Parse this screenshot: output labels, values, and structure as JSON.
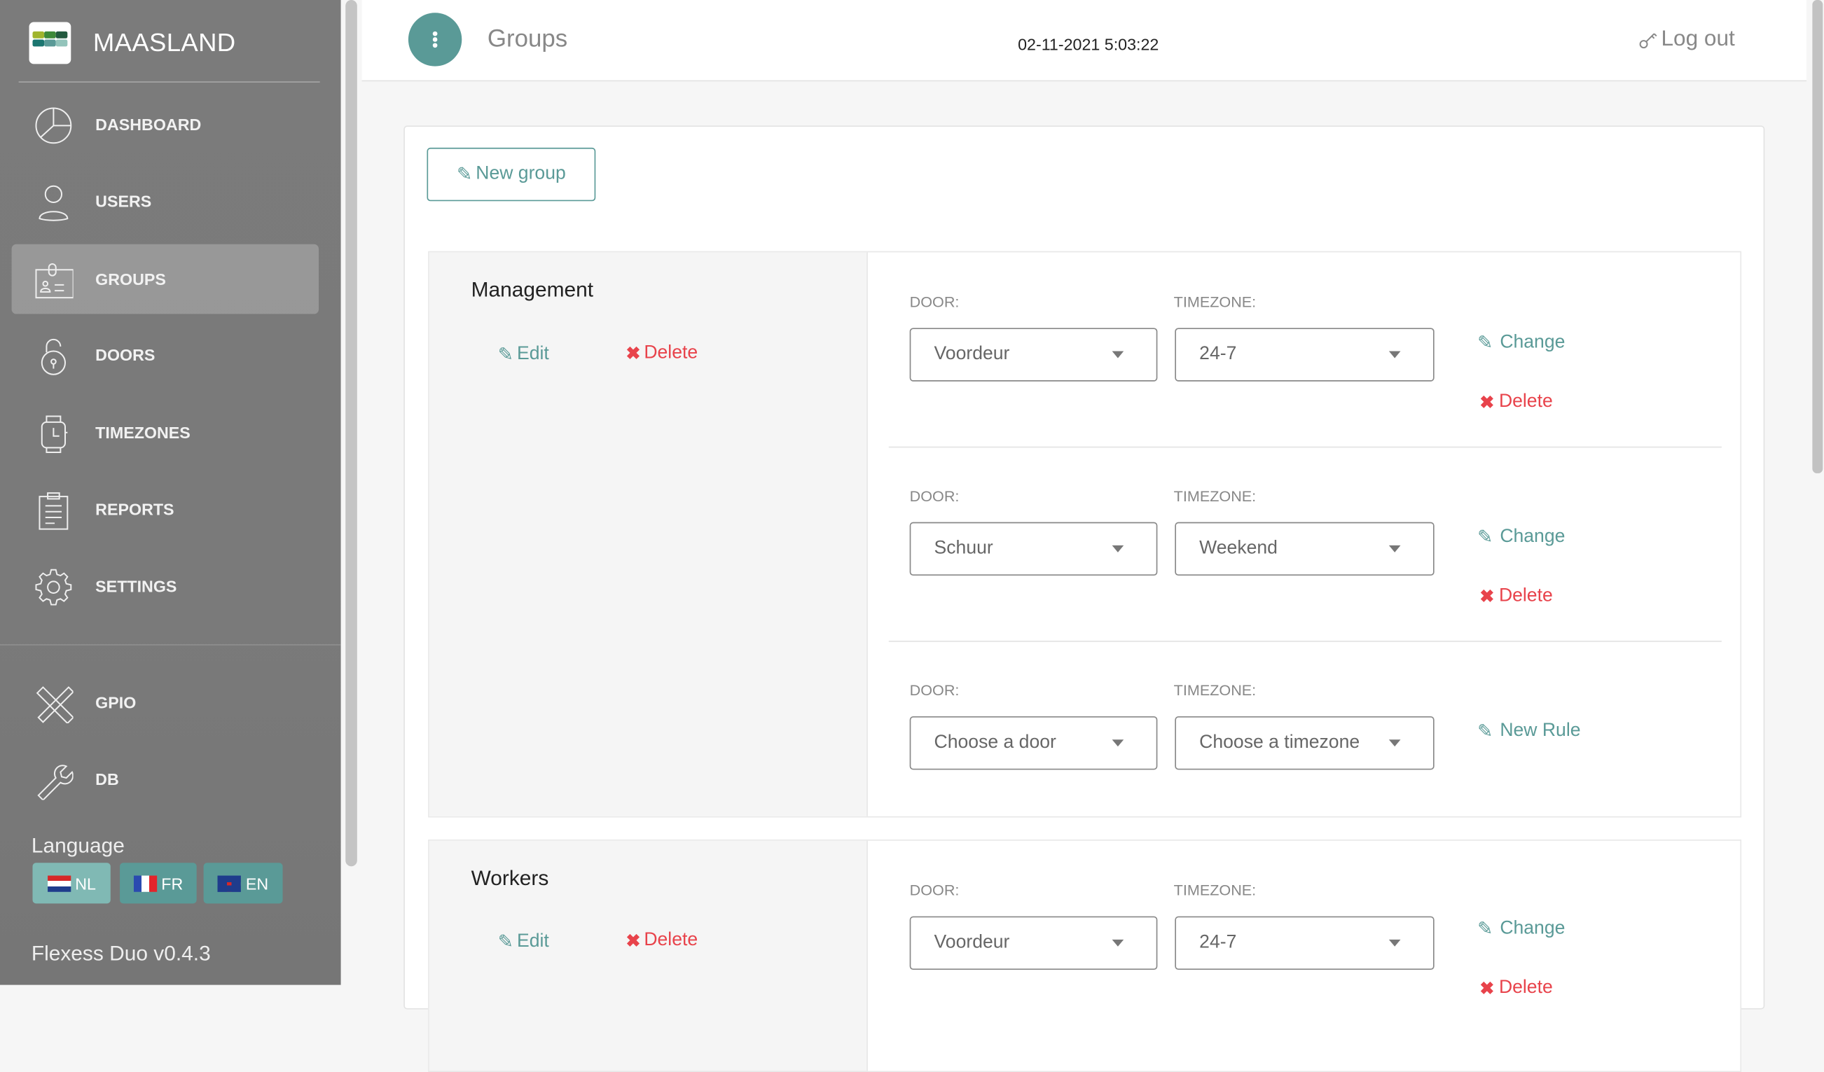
{
  "sidebar": {
    "brand": "MAASLAND",
    "items": [
      {
        "label": "DASHBOARD",
        "icon": "pie-chart-icon"
      },
      {
        "label": "USERS",
        "icon": "user-icon"
      },
      {
        "label": "GROUPS",
        "icon": "id-badge-icon",
        "active": true
      },
      {
        "label": "DOORS",
        "icon": "lock-icon"
      },
      {
        "label": "TIMEZONES",
        "icon": "watch-icon"
      },
      {
        "label": "REPORTS",
        "icon": "clipboard-icon"
      },
      {
        "label": "SETTINGS",
        "icon": "gear-icon"
      }
    ],
    "tools": [
      {
        "label": "GPIO",
        "icon": "tools-icon"
      },
      {
        "label": "DB",
        "icon": "wrench-icon"
      }
    ],
    "language_label": "Language",
    "languages": [
      {
        "label": "NL",
        "active": true
      },
      {
        "label": "FR"
      },
      {
        "label": "EN"
      }
    ],
    "version": "Flexess Duo v0.4.3"
  },
  "header": {
    "title": "Groups",
    "datetime": "02-11-2021 5:03:22",
    "logout": "Log out"
  },
  "main": {
    "new_group": "New group",
    "edit_label": "Edit",
    "delete_label": "Delete",
    "door_label": "DOOR:",
    "timezone_label": "TIMEZONE:",
    "change_label": "Change",
    "new_rule_label": "New Rule",
    "groups": [
      {
        "name": "Management",
        "rules": [
          {
            "door": "Voordeur",
            "timezone": "24-7"
          },
          {
            "door": "Schuur",
            "timezone": "Weekend"
          },
          {
            "door": "Choose a door",
            "timezone": "Choose a timezone",
            "new": true
          }
        ]
      },
      {
        "name": "Workers",
        "rules": [
          {
            "door": "Voordeur",
            "timezone": "24-7"
          }
        ]
      }
    ]
  },
  "colors": {
    "accent": "#5a9a97",
    "danger": "#e8434b",
    "sidebar": "#7b7b7b"
  }
}
